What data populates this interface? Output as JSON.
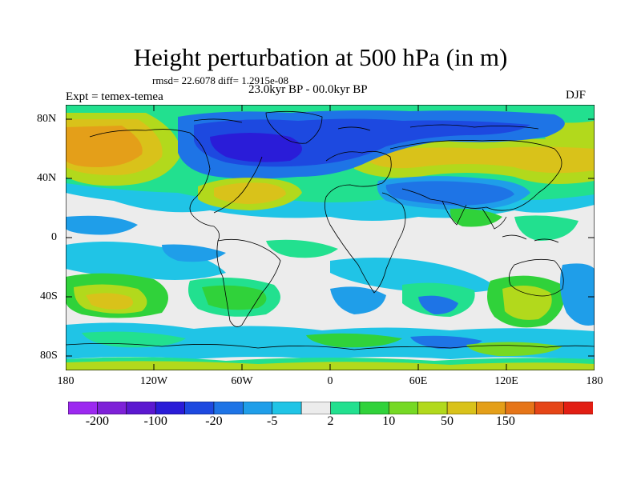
{
  "title": "Height perturbation at 500 hPa (in m)",
  "stats_text": "rmsd= 22.6078 diff= 1.2915e-08",
  "experiment": "Expt = temex-temea",
  "period": "23.0kyr BP - 00.0kyr BP",
  "season": "DJF",
  "y_axis_labels": [
    "80N",
    "40N",
    "0",
    "40S",
    "80S"
  ],
  "x_axis_labels": [
    "180",
    "120W",
    "60W",
    "0",
    "60E",
    "120E",
    "180"
  ],
  "colorbar": {
    "colors": [
      "#9c28f0",
      "#7e21d8",
      "#5b18d0",
      "#2a1cd8",
      "#1d49e0",
      "#1e74e6",
      "#1f9ee9",
      "#20c4e6",
      "#ececec",
      "#22e08f",
      "#30d23a",
      "#76d924",
      "#b2d91c",
      "#d9c21a",
      "#e49f19",
      "#e67518",
      "#e64517",
      "#e21e13"
    ],
    "tick_labels": [
      "-200",
      "-100",
      "-20",
      "-5",
      "2",
      "10",
      "50",
      "150"
    ]
  }
}
